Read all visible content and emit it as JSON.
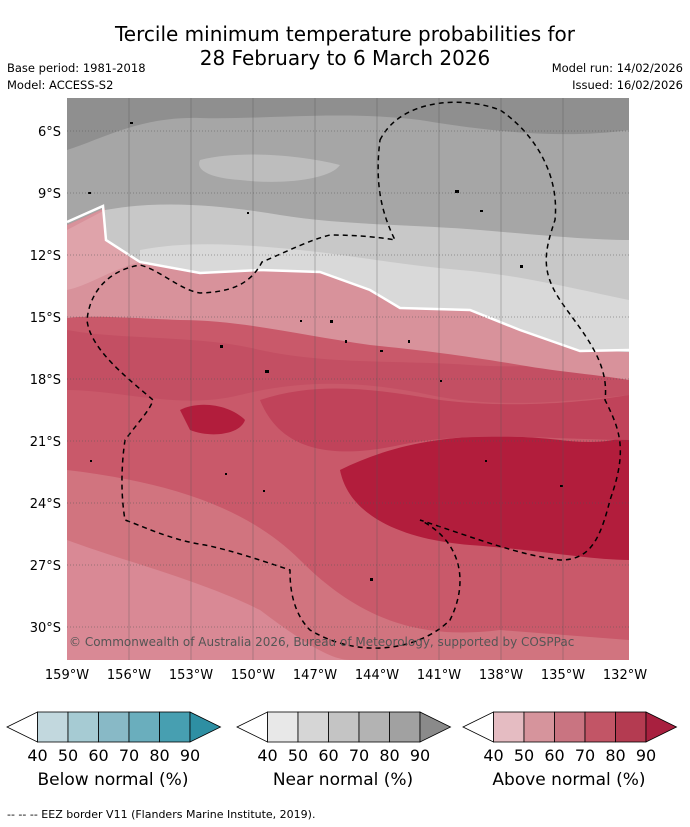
{
  "title_line1": "Tercile minimum temperature probabilities for",
  "title_line2": "28 February to 6 March 2026",
  "base_period": "Base period: 1981-2018",
  "model": "Model: ACCESS-S2",
  "model_run": "Model run: 14/02/2026",
  "issued": "Issued: 16/02/2026",
  "lat_labels": [
    "6°S",
    "9°S",
    "12°S",
    "15°S",
    "18°S",
    "21°S",
    "24°S",
    "27°S",
    "30°S"
  ],
  "lon_labels": [
    "159°W",
    "156°W",
    "153°W",
    "150°W",
    "147°W",
    "144°W",
    "141°W",
    "138°W",
    "135°W",
    "132°W"
  ],
  "copyright": "© Commonwealth of Australia 2026, Bureau of Meteorology, supported by COSPPac",
  "colorbars": [
    {
      "label": "Below normal (%)",
      "ticks": [
        "40",
        "50",
        "60",
        "70",
        "80",
        "90"
      ],
      "colors": [
        "#ffffff",
        "#c2d8de",
        "#a6cbd3",
        "#88b9c6",
        "#6aaebd",
        "#479fb1",
        "#2e8fa3"
      ]
    },
    {
      "label": "Near normal (%)",
      "ticks": [
        "40",
        "50",
        "60",
        "70",
        "80",
        "90"
      ],
      "colors": [
        "#ffffff",
        "#e8e8e8",
        "#d6d6d6",
        "#c4c4c4",
        "#b3b3b3",
        "#a1a1a1",
        "#8a8a8a"
      ]
    },
    {
      "label": "Above normal (%)",
      "ticks": [
        "40",
        "50",
        "60",
        "70",
        "80",
        "90"
      ],
      "colors": [
        "#ffffff",
        "#e5bcc2",
        "#d6949c",
        "#c97481",
        "#c25566",
        "#b43b51",
        "#a8203f"
      ]
    }
  ],
  "footer": "--  --  -- EEZ border V11 (Flanders Marine Institute, 2019)."
}
